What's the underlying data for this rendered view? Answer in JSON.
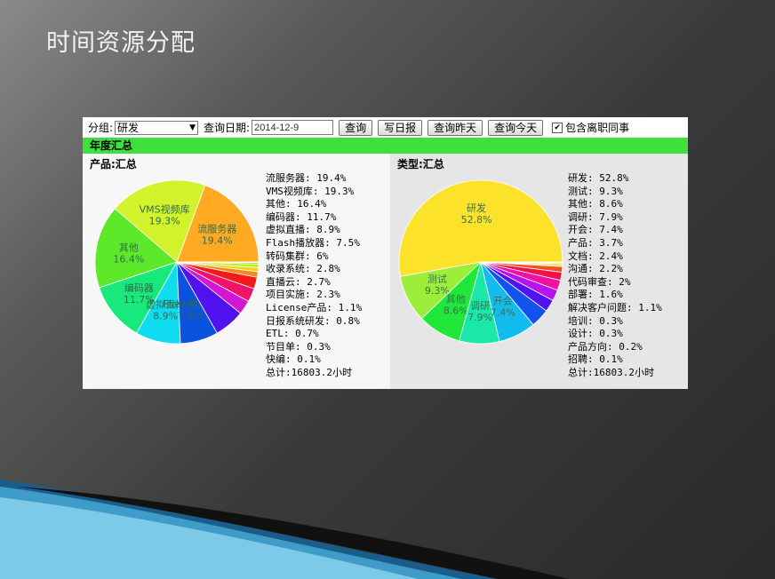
{
  "slide": {
    "title": "时间资源分配"
  },
  "toolbar": {
    "group_label": "分组:",
    "group_value": "研发",
    "date_label": "查询日期:",
    "date_value": "2014-12-9",
    "query_button": "查询",
    "write_daily_button": "写日报",
    "query_yesterday_button": "查询昨天",
    "query_today_button": "查询今天",
    "include_left_label": "包含离职同事",
    "include_left_checked": true
  },
  "section": {
    "title": "年度汇总"
  },
  "product_panel": {
    "title": "产品:汇总",
    "total": "总计:16803.2小时",
    "legend": [
      "流服务器: 19.4%",
      "VMS视频库: 19.3%",
      "其他: 16.4%",
      "编码器: 11.7%",
      "虚拟直播: 8.9%",
      "Flash播放器: 7.5%",
      "转码集群: 6%",
      "收录系统: 2.8%",
      "直播云: 2.7%",
      "项目实施: 2.3%",
      "License产品: 1.1%",
      "日报系统研发: 0.8%",
      "ETL: 0.7%",
      "节目单: 0.3%",
      "快编: 0.1%"
    ]
  },
  "type_panel": {
    "title": "类型:汇总",
    "total": "总计:16803.2小时",
    "legend": [
      "研发: 52.8%",
      "测试: 9.3%",
      "其他: 8.6%",
      "调研: 7.9%",
      "开会: 7.4%",
      "产品: 3.7%",
      "文档: 2.4%",
      "沟通: 2.2%",
      "代码审查: 2%",
      "部署: 1.6%",
      "解决客户问题: 1.1%",
      "培训: 0.3%",
      "设计: 0.3%",
      "产品方向: 0.2%",
      "招聘: 0.1%"
    ]
  },
  "chart_data": [
    {
      "type": "pie",
      "title": "产品:汇总",
      "categories": [
        "流服务器",
        "VMS视频库",
        "其他",
        "编码器",
        "虚拟直播",
        "Flash播放器",
        "转码集群",
        "收录系统",
        "直播云",
        "项目实施",
        "License产品",
        "日报系统研发",
        "ETL",
        "节目单",
        "快编"
      ],
      "values": [
        19.4,
        19.3,
        16.4,
        11.7,
        8.9,
        7.5,
        6,
        2.8,
        2.7,
        2.3,
        1.1,
        0.8,
        0.7,
        0.3,
        0.1
      ],
      "colors": [
        "#ffaa22",
        "#d2f22b",
        "#5ee82a",
        "#19e87a",
        "#10dcef",
        "#0b52e0",
        "#5212f0",
        "#d216d6",
        "#f0126b",
        "#f51a1a",
        "#f58a1a",
        "#f5d21a",
        "#b8ef1e",
        "#6cef22",
        "#1ef03a"
      ],
      "slice_labels": [
        {
          "name": "流服务器",
          "pct": "19.4%"
        },
        {
          "name": "VMS视频库",
          "pct": "19.3%"
        },
        {
          "name": "其他",
          "pct": "16.4%"
        },
        {
          "name": "编码器",
          "pct": "11.7%"
        },
        {
          "name": "虚拟直播",
          "pct": "8.9%"
        },
        {
          "name": "Flash播放器",
          "pct": "7.5%"
        }
      ]
    },
    {
      "type": "pie",
      "title": "类型:汇总",
      "categories": [
        "研发",
        "测试",
        "其他",
        "调研",
        "开会",
        "产品",
        "文档",
        "沟通",
        "代码审查",
        "部署",
        "解决客户问题",
        "培训",
        "设计",
        "产品方向",
        "招聘"
      ],
      "values": [
        52.8,
        9.3,
        8.6,
        7.9,
        7.4,
        3.7,
        2.4,
        2.2,
        2,
        1.6,
        1.1,
        0.3,
        0.3,
        0.2,
        0.1
      ],
      "colors": [
        "#fde22b",
        "#9cee3a",
        "#1fe83a",
        "#19e8a8",
        "#12bcef",
        "#1252ef",
        "#5012ef",
        "#b812ef",
        "#ef12a2",
        "#ef1245",
        "#f5501a",
        "#f5a81a",
        "#f5e21a",
        "#c8ef1e",
        "#6cef22"
      ],
      "slice_labels": [
        {
          "name": "研发",
          "pct": "52.8%"
        },
        {
          "name": "测试",
          "pct": "9.3%"
        },
        {
          "name": "其他",
          "pct": "8.6%"
        },
        {
          "name": "调研",
          "pct": "7.9%"
        },
        {
          "name": "开会",
          "pct": "7.4%"
        }
      ]
    }
  ]
}
